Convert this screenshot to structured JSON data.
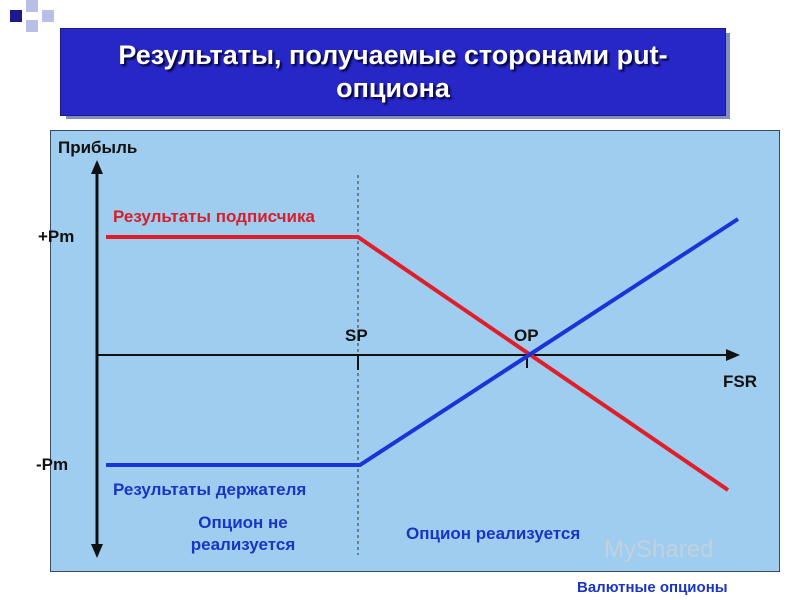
{
  "slide": {
    "title": "Результаты, получаемые сторонами put-опциона",
    "footer": "Валютные опционы",
    "watermark": "MyShared"
  },
  "colors": {
    "title_bg": "#2727c8",
    "panel_bg": "#9ecdf0",
    "writer_line": "#e01e2a",
    "holder_line": "#1a34d8",
    "axis": "#111111"
  },
  "chart_data": {
    "type": "line",
    "y_axis_label": "Прибыль",
    "x_axis_label": "FSR",
    "y_ticks": [
      "+Pm",
      "-Pm"
    ],
    "x_markers": [
      "SP",
      "OP"
    ],
    "series": [
      {
        "name": "Результаты подписчика",
        "shape": "flat at +Pm until SP, then decreasing, crosses zero at OP"
      },
      {
        "name": "Результаты держателя",
        "shape": "flat at -Pm until SP, then increasing, crosses zero at OP"
      }
    ],
    "regions": [
      "Опцион не реализуется",
      "Опцион реализуется"
    ]
  }
}
